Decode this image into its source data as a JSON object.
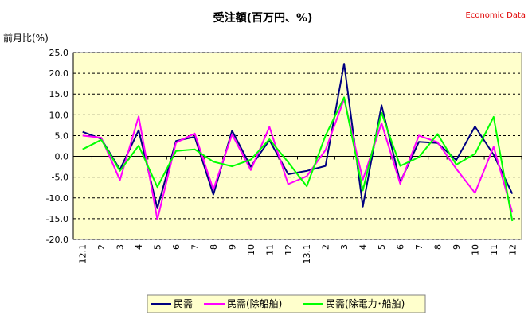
{
  "chart_data": {
    "type": "line",
    "title": "受注額(百万円、%)",
    "source_tag": "Economic Data",
    "ylabel": "前月比(%)",
    "ylim": [
      -20,
      25
    ],
    "yticks": [
      "25.0",
      "20.0",
      "15.0",
      "10.0",
      "5.0",
      "0.0",
      "-5.0",
      "-10.0",
      "-15.0",
      "-20.0"
    ],
    "categories": [
      "12.1",
      "2",
      "3",
      "4",
      "5",
      "6",
      "7",
      "8",
      "9",
      "10",
      "11",
      "12",
      "13.1",
      "2",
      "3",
      "4",
      "5",
      "6",
      "7",
      "8",
      "9",
      "10",
      "11",
      "12"
    ],
    "grid": true,
    "legend_position": "bottom",
    "colors": {
      "plot_bg": "#ffffcc",
      "grid": "#000000"
    },
    "series": [
      {
        "name": "民需",
        "color": "#000080",
        "values": [
          5.9,
          4.2,
          -3.2,
          6.3,
          -12.5,
          3.7,
          4.7,
          -9.2,
          6.2,
          -2.5,
          3.9,
          -4.3,
          -3.5,
          -2.3,
          22.3,
          -12.1,
          12.3,
          -6.2,
          3.5,
          3.2,
          -0.9,
          7.2,
          0.4,
          -9.0
        ]
      },
      {
        "name": "民需(除船舶)",
        "color": "#ff00ff",
        "values": [
          5.0,
          4.5,
          -5.7,
          9.6,
          -15.2,
          3.3,
          5.5,
          -8.0,
          5.3,
          -3.3,
          7.1,
          -6.7,
          -4.8,
          1.5,
          13.8,
          -5.6,
          8.0,
          -6.6,
          5.0,
          3.4,
          -3.0,
          -8.8,
          2.3,
          -13.5
        ]
      },
      {
        "name": "民需(除電力･船舶)",
        "color": "#00ff00",
        "values": [
          1.7,
          4.0,
          -3.5,
          2.6,
          -7.4,
          1.3,
          1.7,
          -1.3,
          -2.4,
          -0.8,
          4.1,
          -1.4,
          -7.2,
          5.0,
          14.2,
          -8.2,
          10.5,
          -2.3,
          -0.2,
          5.4,
          -2.0,
          0.6,
          9.5,
          -15.6
        ]
      }
    ]
  }
}
